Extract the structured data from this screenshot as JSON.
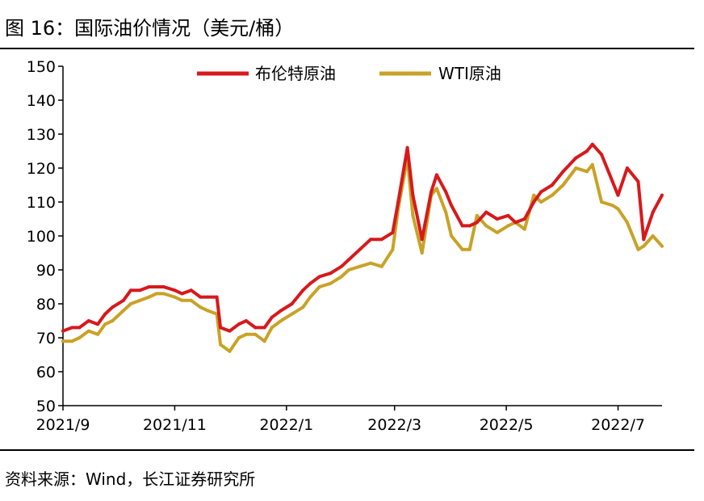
{
  "title": "图 16：国际油价情况（美元/桶）",
  "source": "资料来源：Wind，长江证券研究所",
  "chart_data": {
    "type": "line",
    "title": "图 16：国际油价情况（美元/桶）",
    "xlabel": "",
    "ylabel": "",
    "ylim": [
      50,
      150
    ],
    "yticks": [
      50,
      60,
      70,
      80,
      90,
      100,
      110,
      120,
      130,
      140,
      150
    ],
    "xlim": [
      "2021-09-01",
      "2022-07-25"
    ],
    "xticks": [
      {
        "date": "2021-09-01",
        "label": "2021/9"
      },
      {
        "date": "2021-11-01",
        "label": "2021/11"
      },
      {
        "date": "2022-01-01",
        "label": "2022/1"
      },
      {
        "date": "2022-03-01",
        "label": "2022/3"
      },
      {
        "date": "2022-05-01",
        "label": "2022/5"
      },
      {
        "date": "2022-07-01",
        "label": "2022/7"
      }
    ],
    "grid": false,
    "legend_position": "top-center",
    "series": [
      {
        "name": "布伦特原油",
        "color": "#d7191c",
        "x": [
          "2021-09-01",
          "2021-09-06",
          "2021-09-10",
          "2021-09-15",
          "2021-09-20",
          "2021-09-24",
          "2021-09-28",
          "2021-10-04",
          "2021-10-08",
          "2021-10-13",
          "2021-10-18",
          "2021-10-22",
          "2021-10-26",
          "2021-11-01",
          "2021-11-05",
          "2021-11-10",
          "2021-11-15",
          "2021-11-19",
          "2021-11-24",
          "2021-11-26",
          "2021-12-01",
          "2021-12-06",
          "2021-12-10",
          "2021-12-15",
          "2021-12-20",
          "2021-12-24",
          "2021-12-29",
          "2022-01-04",
          "2022-01-10",
          "2022-01-14",
          "2022-01-19",
          "2022-01-25",
          "2022-01-31",
          "2022-02-04",
          "2022-02-10",
          "2022-02-16",
          "2022-02-22",
          "2022-02-28",
          "2022-03-03",
          "2022-03-08",
          "2022-03-11",
          "2022-03-16",
          "2022-03-21",
          "2022-03-24",
          "2022-03-29",
          "2022-04-01",
          "2022-04-07",
          "2022-04-11",
          "2022-04-15",
          "2022-04-20",
          "2022-04-26",
          "2022-05-02",
          "2022-05-06",
          "2022-05-11",
          "2022-05-16",
          "2022-05-20",
          "2022-05-26",
          "2022-06-01",
          "2022-06-08",
          "2022-06-14",
          "2022-06-17",
          "2022-06-22",
          "2022-06-28",
          "2022-07-01",
          "2022-07-06",
          "2022-07-12",
          "2022-07-15",
          "2022-07-20",
          "2022-07-25"
        ],
        "values": [
          72,
          73,
          73,
          75,
          74,
          77,
          79,
          81,
          84,
          84,
          85,
          85,
          85,
          84,
          83,
          84,
          82,
          82,
          82,
          73,
          72,
          74,
          75,
          73,
          73,
          76,
          78,
          80,
          84,
          86,
          88,
          89,
          91,
          93,
          96,
          99,
          99,
          101,
          110,
          126,
          112,
          99,
          113,
          118,
          113,
          109,
          103,
          103,
          104,
          107,
          105,
          106,
          104,
          105,
          110,
          113,
          115,
          119,
          123,
          125,
          127,
          124,
          116,
          112,
          120,
          116,
          99,
          107,
          112
        ]
      },
      {
        "name": "WTI原油",
        "color": "#c9a227",
        "x": [
          "2021-09-01",
          "2021-09-06",
          "2021-09-10",
          "2021-09-15",
          "2021-09-20",
          "2021-09-24",
          "2021-09-28",
          "2021-10-04",
          "2021-10-08",
          "2021-10-13",
          "2021-10-18",
          "2021-10-22",
          "2021-10-26",
          "2021-11-01",
          "2021-11-05",
          "2021-11-10",
          "2021-11-15",
          "2021-11-19",
          "2021-11-24",
          "2021-11-26",
          "2021-12-01",
          "2021-12-06",
          "2021-12-10",
          "2021-12-15",
          "2021-12-20",
          "2021-12-24",
          "2021-12-29",
          "2022-01-04",
          "2022-01-10",
          "2022-01-14",
          "2022-01-19",
          "2022-01-25",
          "2022-01-31",
          "2022-02-04",
          "2022-02-10",
          "2022-02-16",
          "2022-02-22",
          "2022-02-28",
          "2022-03-03",
          "2022-03-08",
          "2022-03-11",
          "2022-03-16",
          "2022-03-21",
          "2022-03-24",
          "2022-03-29",
          "2022-04-01",
          "2022-04-07",
          "2022-04-11",
          "2022-04-15",
          "2022-04-20",
          "2022-04-26",
          "2022-05-02",
          "2022-05-06",
          "2022-05-11",
          "2022-05-16",
          "2022-05-20",
          "2022-05-26",
          "2022-06-01",
          "2022-06-08",
          "2022-06-14",
          "2022-06-17",
          "2022-06-22",
          "2022-06-28",
          "2022-07-01",
          "2022-07-06",
          "2022-07-12",
          "2022-07-15",
          "2022-07-20",
          "2022-07-25"
        ],
        "values": [
          69,
          69,
          70,
          72,
          71,
          74,
          75,
          78,
          80,
          81,
          82,
          83,
          83,
          82,
          81,
          81,
          79,
          78,
          77,
          68,
          66,
          70,
          71,
          71,
          69,
          73,
          75,
          77,
          79,
          82,
          85,
          86,
          88,
          90,
          91,
          92,
          91,
          96,
          108,
          123,
          106,
          95,
          112,
          114,
          107,
          100,
          96,
          96,
          106,
          103,
          101,
          103,
          104,
          102,
          112,
          110,
          112,
          115,
          120,
          119,
          121,
          110,
          109,
          108,
          104,
          96,
          97,
          100,
          97
        ]
      }
    ]
  }
}
